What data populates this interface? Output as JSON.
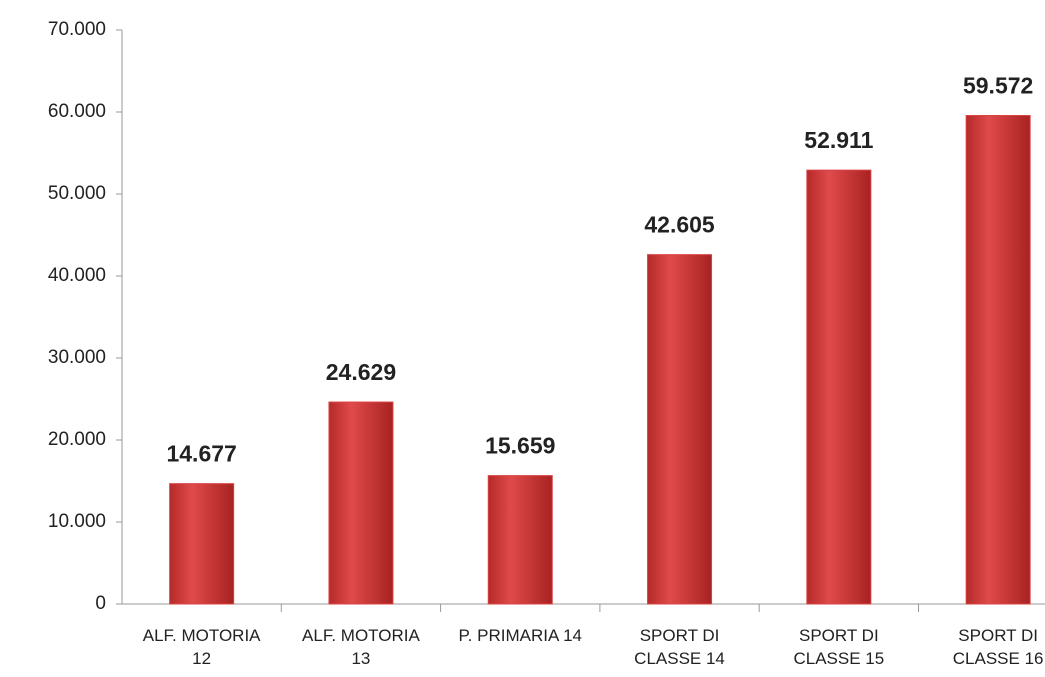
{
  "chart_data": {
    "type": "bar",
    "categories": [
      "ALF. MOTORIA 12",
      "ALF. MOTORIA 13",
      "P. PRIMARIA 14",
      "SPORT DI CLASSE 14",
      "SPORT DI CLASSE 15",
      "SPORT DI CLASSE 16"
    ],
    "values": [
      14677,
      24629,
      15659,
      42605,
      52911,
      59572
    ],
    "value_labels": [
      "14.677",
      "24.629",
      "15.659",
      "42.605",
      "52.911",
      "59.572"
    ],
    "color": "#d94343",
    "ylim": [
      0,
      70000
    ],
    "yticks": [
      {
        "value": 0,
        "label": "0"
      },
      {
        "value": 10000,
        "label": "10.000"
      },
      {
        "value": 20000,
        "label": "20.000"
      },
      {
        "value": 30000,
        "label": "30.000"
      },
      {
        "value": 40000,
        "label": "40.000"
      },
      {
        "value": 50000,
        "label": "50.000"
      },
      {
        "value": 60000,
        "label": "60.000"
      },
      {
        "value": 70000,
        "label": "70.000"
      }
    ],
    "grid": false
  }
}
